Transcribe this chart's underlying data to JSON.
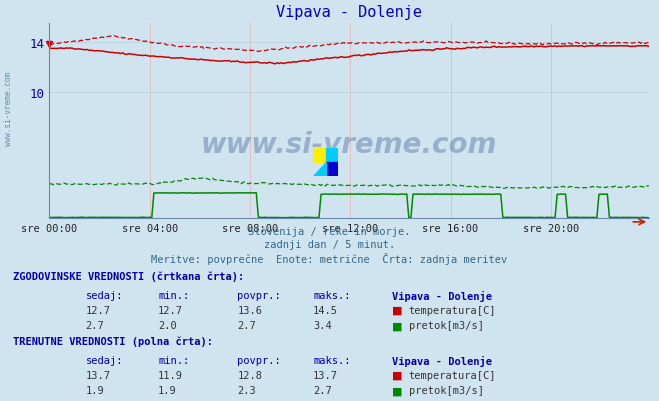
{
  "title": "Vipava - Dolenje",
  "background_color": "#d0e4f0",
  "plot_bg_color": "#d0e4f0",
  "grid_color_h": "#c0d0e0",
  "grid_color_v": "#f0a0a0",
  "x_ticks_labels": [
    "sre 00:00",
    "sre 04:00",
    "sre 08:00",
    "sre 12:00",
    "sre 16:00",
    "sre 20:00"
  ],
  "x_ticks_pos": [
    0,
    48,
    96,
    144,
    192,
    240
  ],
  "y_ticks": [
    10,
    14
  ],
  "ylim": [
    0,
    15.5
  ],
  "xlim": [
    0,
    287
  ],
  "subtitle_lines": [
    "Slovenija / reke in morje.",
    "zadnji dan / 5 minut.",
    "Meritve: povprečne  Enote: metrične  Črta: zadnja meritev"
  ],
  "watermark_text": "www.si-vreme.com",
  "temp_color": "#cc0000",
  "flow_color": "#008800",
  "hist_label": "ZGODOVINSKE VREDNOSTI (črtkana črta):",
  "curr_label": "TRENUTNE VREDNOSTI (polna črta):",
  "col_headers": [
    "sedaj:",
    "min.:",
    "povpr.:",
    "maks.:",
    "Vipava - Dolenje"
  ],
  "hist_temp": [
    12.7,
    12.7,
    13.6,
    14.5
  ],
  "hist_flow": [
    2.7,
    2.0,
    2.7,
    3.4
  ],
  "curr_temp": [
    13.7,
    11.9,
    12.8,
    13.7
  ],
  "curr_flow": [
    1.9,
    1.9,
    2.3,
    2.7
  ],
  "temp_label": "temperatura[C]",
  "flow_label": "pretok[m3/s]"
}
